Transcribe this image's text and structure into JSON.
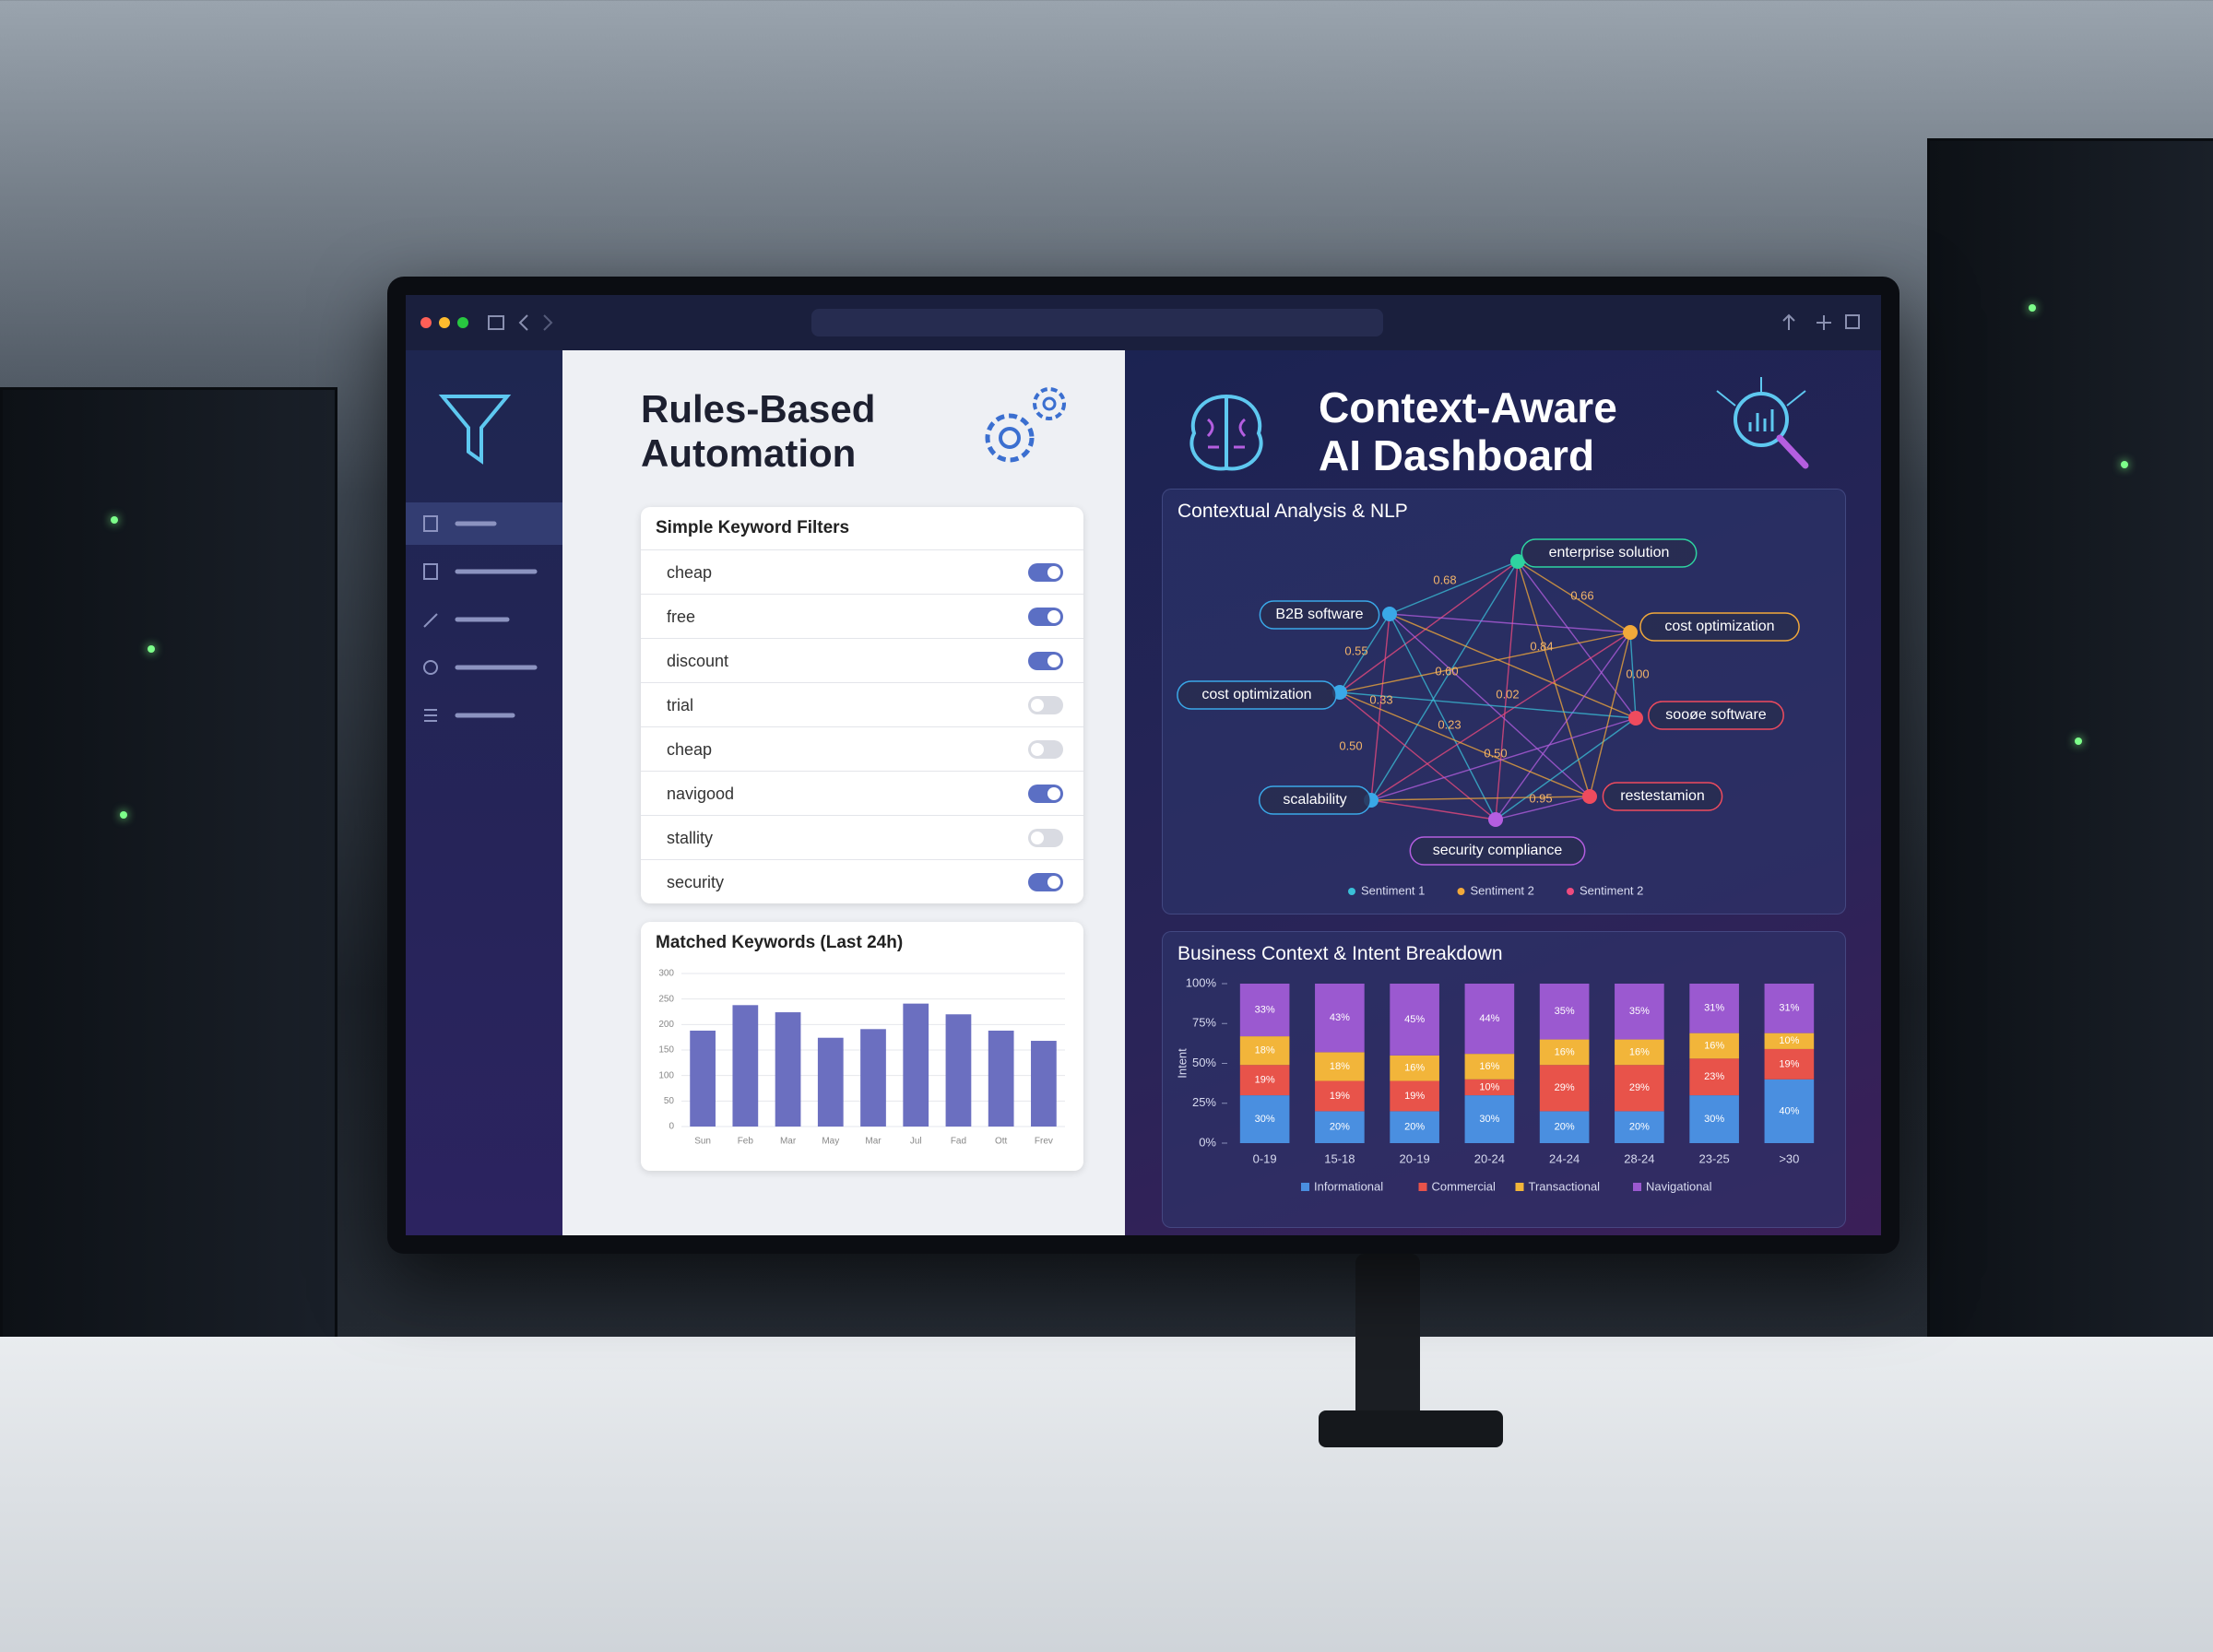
{
  "left_panel": {
    "title": "Rules-Based Automation",
    "filters": {
      "title": "Simple Keyword Filters",
      "items": [
        {
          "label": "cheap",
          "enabled": true
        },
        {
          "label": "free",
          "enabled": true
        },
        {
          "label": "discount",
          "enabled": true
        },
        {
          "label": "trial",
          "enabled": false
        },
        {
          "label": "cheap",
          "enabled": false
        },
        {
          "label": "navigood",
          "enabled": true
        },
        {
          "label": "stallity",
          "enabled": false
        },
        {
          "label": "security",
          "enabled": true
        }
      ]
    },
    "matched_chart": {
      "type": "bar",
      "title": "Matched Keywords (Last 24h)",
      "categories": [
        "Sun",
        "Feb",
        "Mar",
        "May",
        "Mar",
        "Jul",
        "Fad",
        "Ott",
        "Frev"
      ],
      "values": [
        188,
        238,
        224,
        174,
        191,
        241,
        220,
        188,
        168
      ],
      "color": "#6b6fc0",
      "ylim": [
        0,
        300
      ],
      "yticks": [
        0,
        50,
        100,
        150,
        200,
        250,
        300
      ],
      "grid": true
    }
  },
  "right_panel": {
    "title": "Context-Aware AI Dashboard",
    "network": {
      "title": "Contextual Analysis & NLP",
      "nodes": [
        {
          "label": "enterprise solution",
          "color": "#2ed3a0"
        },
        {
          "label": "B2B software",
          "color": "#3aa8e8"
        },
        {
          "label": "cost optimization",
          "color": "#f2a93a"
        },
        {
          "label": "cost optimization",
          "color": "#3aa8e8"
        },
        {
          "label": "sooøe software",
          "color": "#ef4b5e"
        },
        {
          "label": "scalability",
          "color": "#3aa8e8"
        },
        {
          "label": "restestamion",
          "color": "#ef4b5e"
        },
        {
          "label": "security compliance",
          "color": "#b45ee0"
        }
      ],
      "edge_labels": [
        "0.68",
        "0.66",
        "0.55",
        "0.84",
        "0.00",
        "0.33",
        "0.60",
        "0.02",
        "0.23",
        "0.50",
        "0.50",
        "0.95"
      ],
      "legend": [
        {
          "label": "Sentiment 1",
          "color": "#3ac0d8"
        },
        {
          "label": "Sentiment 2",
          "color": "#f2a93a"
        },
        {
          "label": "Sentiment 2",
          "color": "#ef4b7e"
        }
      ]
    },
    "intent_chart": {
      "type": "bar",
      "stacked": true,
      "title": "Business Context & Intent Breakdown",
      "y_label": "Intent",
      "categories": [
        "0-19",
        "15-18",
        "20-19",
        "20-24",
        "24-24",
        "28-24",
        "23-25",
        ">30"
      ],
      "series": [
        {
          "name": "Informational",
          "color": "#4a8fe0",
          "values": [
            30,
            20,
            20,
            30,
            20,
            20,
            30,
            40
          ],
          "value_labels": [
            "30%",
            "20%",
            "20%",
            "30%",
            "20%",
            "20%",
            "30%",
            "40%"
          ]
        },
        {
          "name": "Commercial",
          "color": "#e8534a",
          "values": [
            19,
            19,
            19,
            10,
            29,
            29,
            23,
            19
          ],
          "value_labels": [
            "19%",
            "19%",
            "19%",
            "10%",
            "29%",
            "29%",
            "23%",
            "19%"
          ]
        },
        {
          "name": "Transactional",
          "color": "#f2b53a",
          "values": [
            18,
            18,
            16,
            16,
            16,
            16,
            16,
            10
          ],
          "value_labels": [
            "18%",
            "18%",
            "16%",
            "16%",
            "16%",
            "16%",
            "16%",
            "10%"
          ]
        },
        {
          "name": "Navigational",
          "color": "#9b59d0",
          "values": [
            33,
            43,
            45,
            44,
            35,
            35,
            31,
            31
          ],
          "value_labels": [
            "33%",
            "43%",
            "45%",
            "44%",
            "35%",
            "35%",
            "31%",
            "31%"
          ]
        }
      ],
      "ylim": [
        0,
        100
      ],
      "yticks": [
        {
          "value": 0,
          "label": "0%"
        },
        {
          "value": 25,
          "label": "25%"
        },
        {
          "value": 50,
          "label": "50%"
        },
        {
          "value": 75,
          "label": "75%"
        },
        {
          "value": 100,
          "label": "100%"
        }
      ],
      "legend": "bottom"
    }
  }
}
